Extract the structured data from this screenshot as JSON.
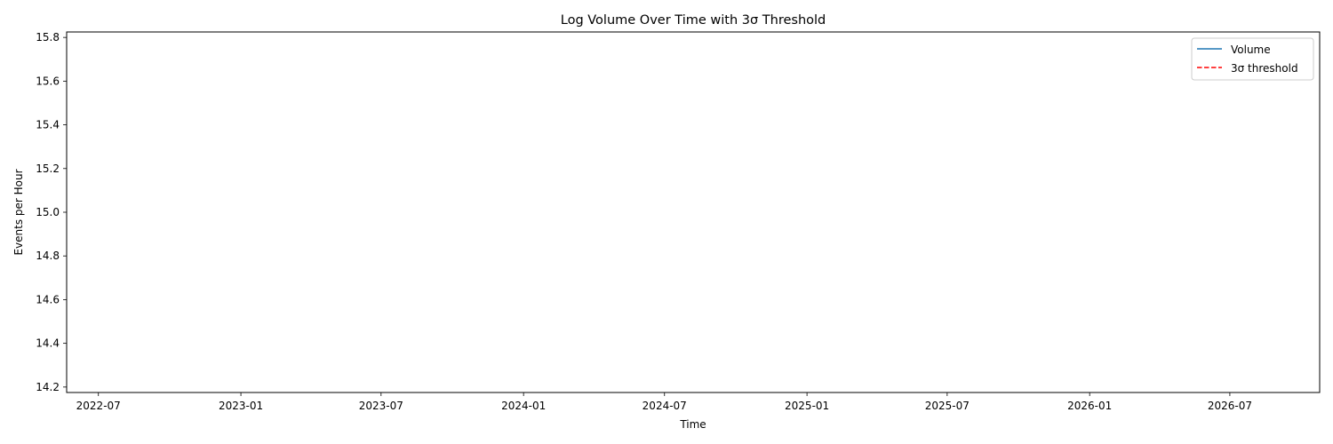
{
  "chart_data": {
    "type": "line",
    "title": "Log Volume Over Time with 3σ Threshold",
    "xlabel": "Time",
    "ylabel": "Events per Hour",
    "x_axis_type": "date",
    "xlim": [
      "2022-05-21",
      "2026-10-25"
    ],
    "ylim": [
      14.175,
      15.825
    ],
    "x_ticks": [
      "2022-07",
      "2023-01",
      "2023-07",
      "2024-01",
      "2024-07",
      "2025-01",
      "2025-07",
      "2026-01",
      "2026-07"
    ],
    "y_ticks": [
      "14.2",
      "14.4",
      "14.6",
      "14.8",
      "15.0",
      "15.2",
      "15.4",
      "15.6",
      "15.8"
    ],
    "grid": false,
    "legend_position": "top-right",
    "series": [
      {
        "name": "Volume",
        "color": "#1f77b4",
        "linestyle": "solid",
        "x": [],
        "values": []
      },
      {
        "name": "3σ threshold",
        "color": "#ff0000",
        "linestyle": "dashed",
        "x": [],
        "values": []
      }
    ]
  }
}
